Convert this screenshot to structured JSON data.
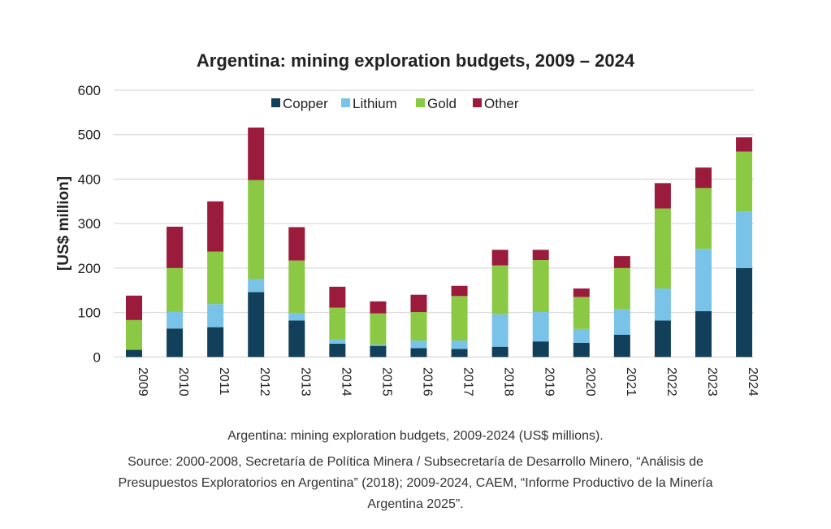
{
  "chart_data": {
    "type": "bar",
    "stacked": true,
    "title": "Argentina: mining exploration budgets, 2009 – 2024",
    "ylabel": "[US$ million]",
    "xlabel": "",
    "ylim": [
      0,
      600
    ],
    "yticks": [
      "0",
      "100",
      "200",
      "300",
      "400",
      "500",
      "600"
    ],
    "grid": true,
    "legend_position": "top",
    "categories": [
      "2009",
      "2010",
      "2011",
      "2012",
      "2013",
      "2014",
      "2015",
      "2016",
      "2017",
      "2018",
      "2019",
      "2020",
      "2021",
      "2022",
      "2023",
      "2024"
    ],
    "series": [
      {
        "name": "Copper",
        "color": "#123f59",
        "values": [
          16,
          64,
          67,
          146,
          82,
          30,
          25,
          20,
          18,
          23,
          35,
          32,
          50,
          82,
          103,
          200
        ]
      },
      {
        "name": "Lithium",
        "color": "#7ac3e8",
        "values": [
          0,
          38,
          52,
          30,
          17,
          9,
          3,
          17,
          19,
          73,
          66,
          31,
          57,
          72,
          140,
          127
        ]
      },
      {
        "name": "Gold",
        "color": "#8bc945",
        "values": [
          67,
          98,
          118,
          222,
          118,
          72,
          70,
          64,
          100,
          110,
          117,
          72,
          93,
          180,
          137,
          135
        ]
      },
      {
        "name": "Other",
        "color": "#9b1b3d",
        "values": [
          55,
          93,
          113,
          118,
          75,
          47,
          27,
          39,
          23,
          35,
          23,
          19,
          27,
          57,
          46,
          32
        ]
      }
    ]
  },
  "caption": {
    "line1": "Argentina: mining exploration budgets, 2009-2024 (US$ millions).",
    "line2": "Source: 2000-2008, Secretaría de Política Minera / Subsecretaría de Desarrollo Minero, “Análisis de",
    "line3": "Presupuestos Exploratorios en Argentina” (2018); 2009-2024, CAEM, “Informe Productivo de la Minería",
    "line4": "Argentina 2025”."
  }
}
